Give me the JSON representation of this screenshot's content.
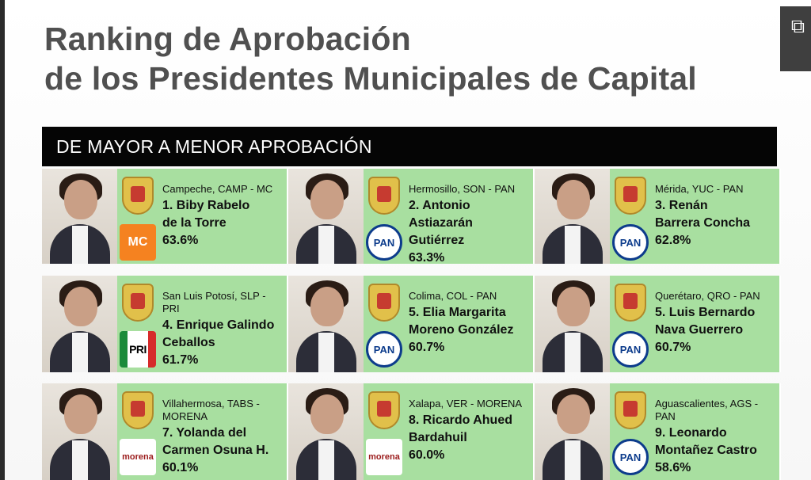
{
  "title_line1": "Ranking de Aprobación",
  "title_line2": "de los Presidentes Municipales de Capital",
  "banner": "DE MAYOR A MENOR APROBACIÓN",
  "share_icon": "external-link-icon",
  "cards": [
    {
      "city": "Campeche, CAMP - MC",
      "name_line1": "1. Biby Rabelo",
      "name_line2": "de la Torre",
      "pct": "63.6%",
      "party": "MC",
      "party_label": "MC"
    },
    {
      "city": "Hermosillo, SON - PAN",
      "name_line1": "2. Antonio",
      "name_line2": "Astiazarán Gutiérrez",
      "pct": "63.3%",
      "party": "PAN",
      "party_label": "PAN"
    },
    {
      "city": "Mérida, YUC - PAN",
      "name_line1": "3. Renán",
      "name_line2": "Barrera Concha",
      "pct": "62.8%",
      "party": "PAN",
      "party_label": "PAN"
    },
    {
      "city": "San Luis Potosí, SLP - PRI",
      "name_line1": "4. Enrique Galindo",
      "name_line2": "Ceballos",
      "pct": "61.7%",
      "party": "PRI",
      "party_label": "PRI"
    },
    {
      "city": "Colima, COL - PAN",
      "name_line1": "5. Elia Margarita",
      "name_line2": "Moreno González",
      "pct": "60.7%",
      "party": "PAN",
      "party_label": "PAN"
    },
    {
      "city": "Querétaro, QRO - PAN",
      "name_line1": "5. Luis Bernardo",
      "name_line2": "Nava Guerrero",
      "pct": "60.7%",
      "party": "PAN",
      "party_label": "PAN"
    },
    {
      "city": "Villahermosa, TABS - MORENA",
      "name_line1": "7. Yolanda del",
      "name_line2": "Carmen Osuna H.",
      "pct": "60.1%",
      "party": "MORENA",
      "party_label": "morena"
    },
    {
      "city": "Xalapa, VER - MORENA",
      "name_line1": "8. Ricardo Ahued",
      "name_line2": "Bardahuil",
      "pct": "60.0%",
      "party": "MORENA",
      "party_label": "morena"
    },
    {
      "city": "Aguascalientes, AGS - PAN",
      "name_line1": "9. Leonardo",
      "name_line2": "Montañez Castro",
      "pct": "58.6%",
      "party": "PAN",
      "party_label": "PAN"
    }
  ],
  "colors": {
    "title": "#505050",
    "banner_bg": "#050505",
    "card_bg": "#a8dfa0",
    "pan_blue": "#0d3c8c",
    "mc_orange": "#f58220",
    "morena_red": "#9b1b1b"
  }
}
